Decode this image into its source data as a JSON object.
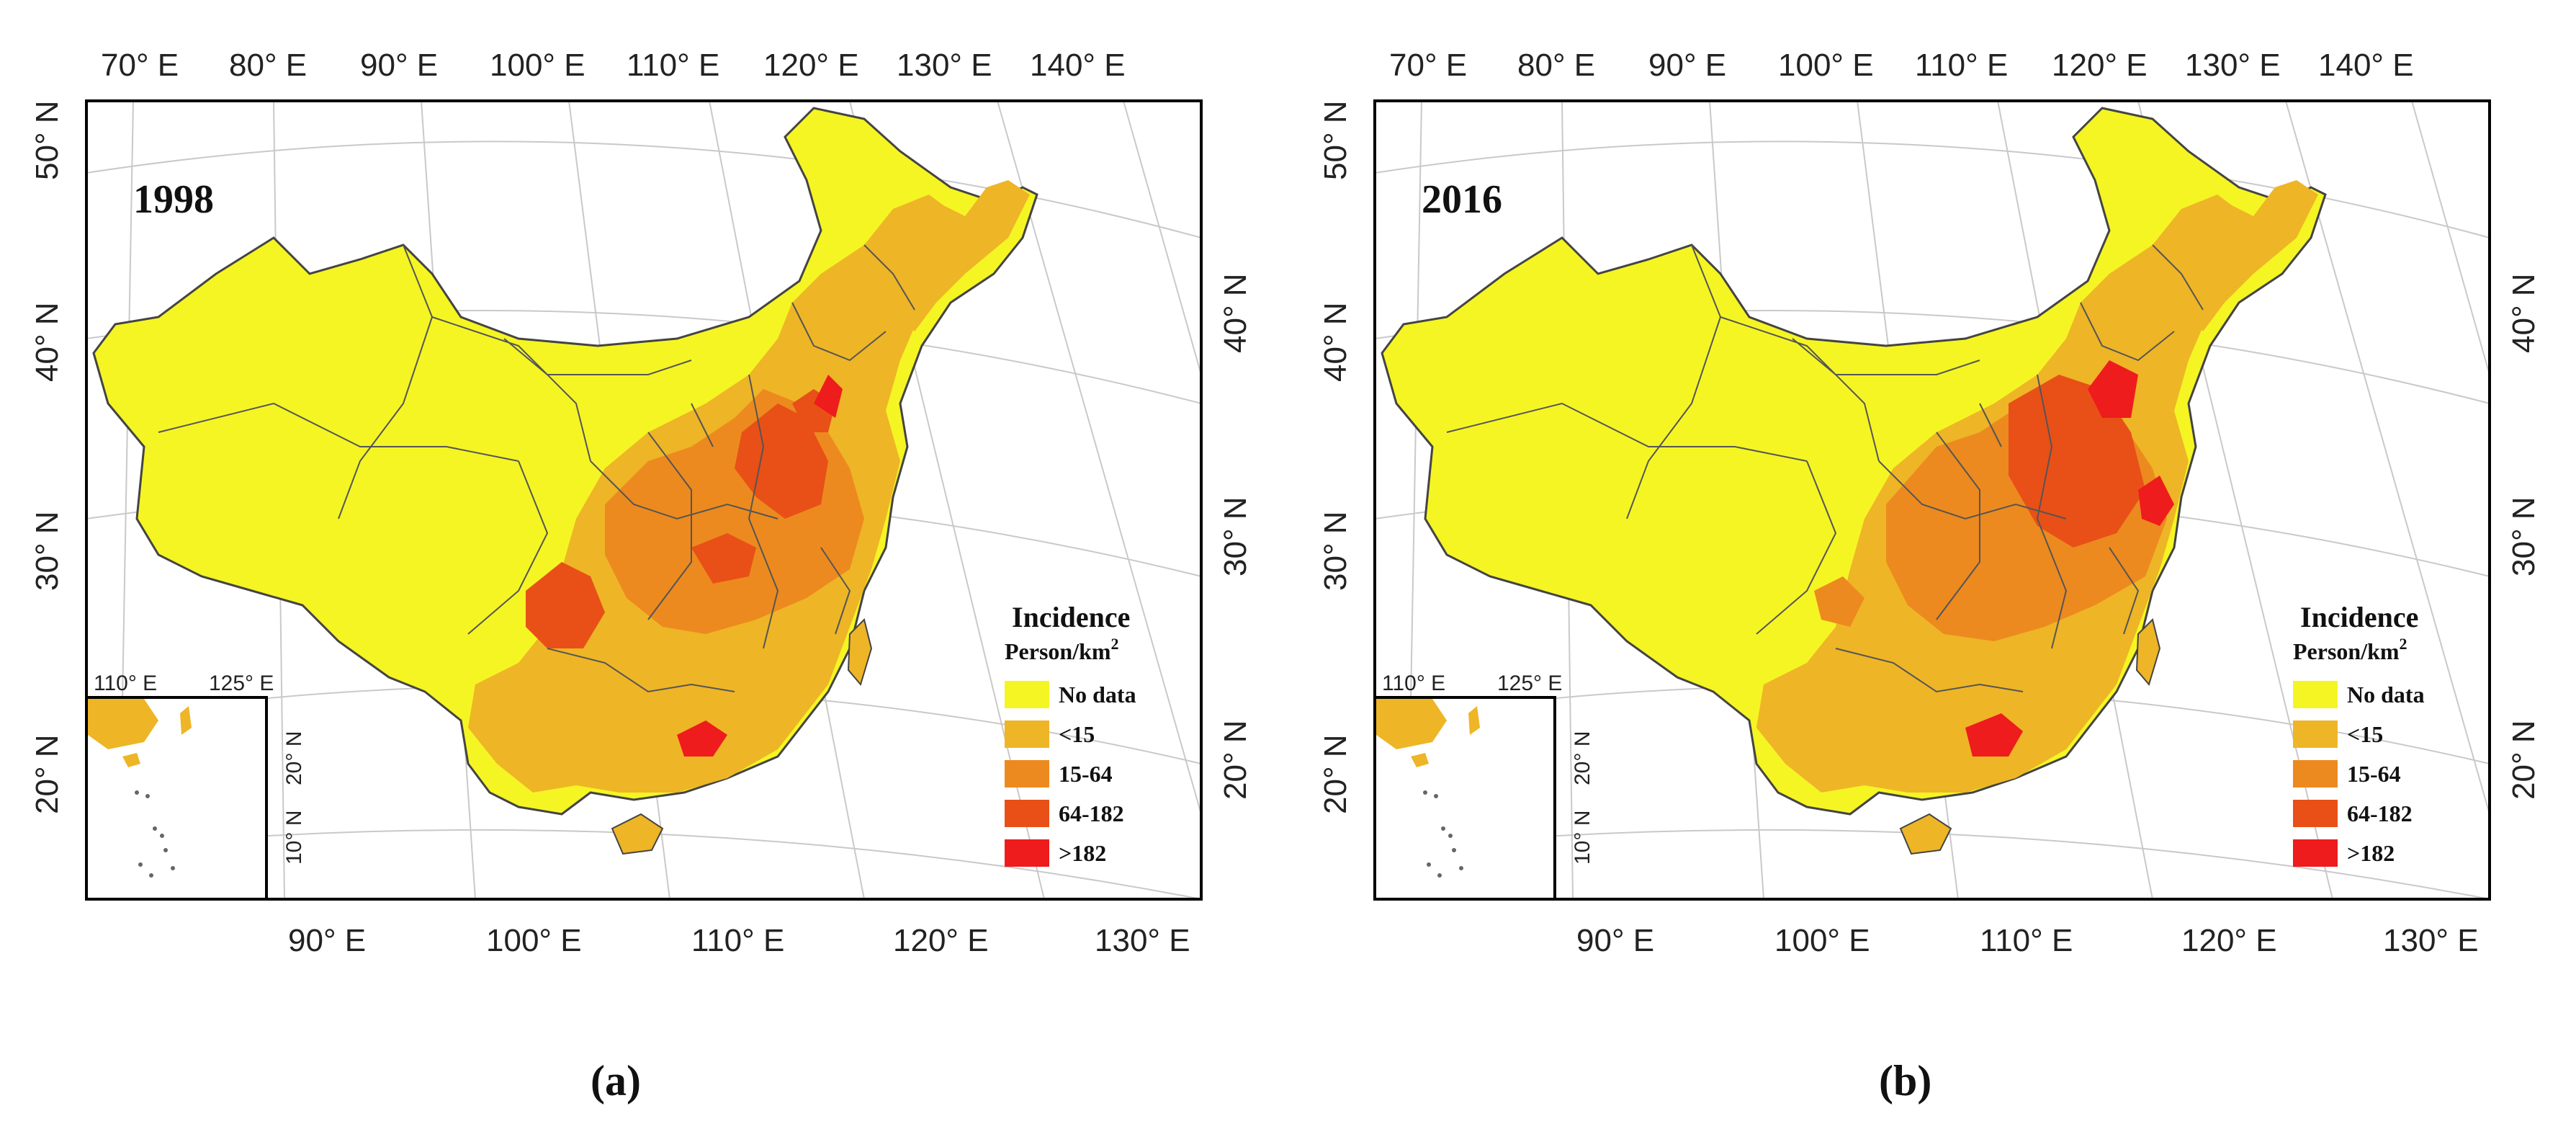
{
  "figure": {
    "top_lon_ticks": [
      "70° E",
      "80° E",
      "90° E",
      "100° E",
      "110° E",
      "120° E",
      "130° E",
      "140° E"
    ],
    "bottom_lon_ticks": [
      "90° E",
      "100° E",
      "110° E",
      "120° E",
      "130° E"
    ],
    "left_lat_ticks": [
      "50° N",
      "40° N",
      "30° N",
      "20° N"
    ],
    "right_lat_ticks": [
      "40° N",
      "30° N",
      "20° N"
    ],
    "inset_lon_ticks": [
      "110° E",
      "125° E"
    ],
    "inset_lat_ticks": [
      "20° N",
      "10° N"
    ],
    "legend": {
      "title": "Incidence",
      "unit": "Person/km",
      "unit_superscript": "2",
      "classes": [
        {
          "label": "No data",
          "color": "#f5f524"
        },
        {
          "label": "<15",
          "color": "#eeb526"
        },
        {
          "label": "15-64",
          "color": "#ec8a1f"
        },
        {
          "label": "64-182",
          "color": "#e85017"
        },
        {
          "label": ">182",
          "color": "#ee1c1c"
        }
      ]
    }
  },
  "panels": [
    {
      "year": "1998",
      "caption": "(a)"
    },
    {
      "year": "2016",
      "caption": "(b)"
    }
  ]
}
